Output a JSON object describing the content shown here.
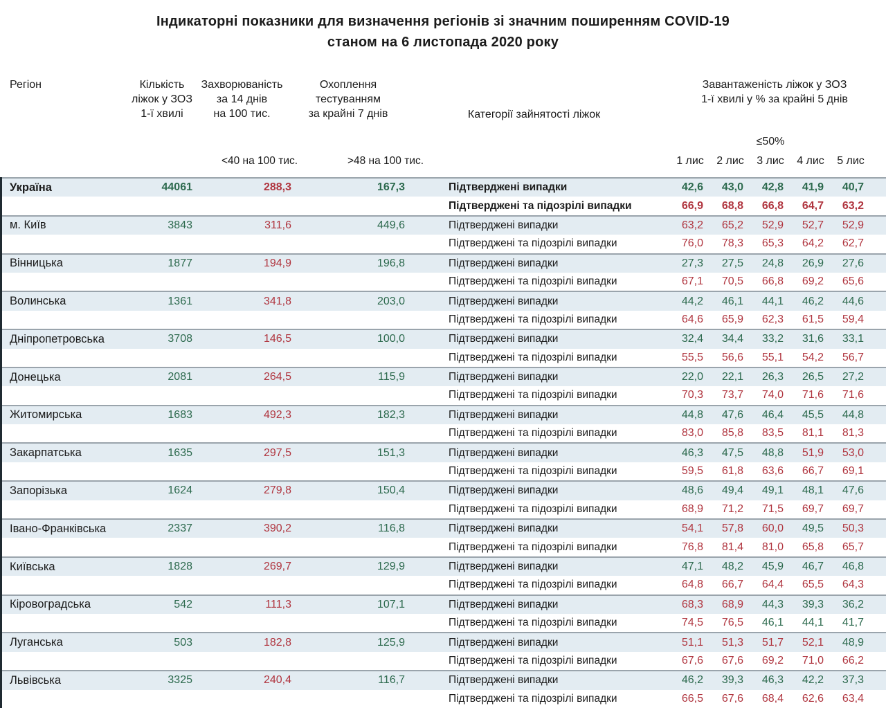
{
  "title": {
    "line1": "Індикаторні показники для визначення регіонів зі значним поширенням COVID-19",
    "line2": "станом на 6 листопада 2020 року"
  },
  "header": {
    "region": "Регіон",
    "beds": [
      "Кількість",
      "ліжок у ЗОЗ",
      "1-ї хвилі"
    ],
    "incidence": [
      "Захворюваність",
      "за 14 днів",
      "на 100 тис."
    ],
    "testing": [
      "Охоплення",
      "тестуванням",
      "за крайні 7 днів"
    ],
    "category": "Категорії зайнятості ліжок",
    "occupancy": [
      "Завантаженість ліжок у ЗОЗ",
      "1-ї хвилі у % за крайні 5 днів"
    ],
    "incidence_threshold": "<40 на 100 тис.",
    "testing_threshold": ">48 на 100 тис.",
    "occupancy_threshold": "≤50%",
    "dates": [
      "1 лис",
      "2 лис",
      "3 лис",
      "4 лис",
      "5 лис"
    ]
  },
  "row_labels": {
    "confirmed": "Підтверджені випадки",
    "confirmed_suspected": "Підтверджені та підозрілі випадки"
  },
  "colors": {
    "green": "#2d6a4e",
    "red": "#b0353f",
    "row_alt_bg": "#e3ecf2",
    "separator": "#9aa4ac",
    "left_bar": "#1f2a31"
  },
  "chart_data": {
    "type": "table",
    "title": "Індикаторні показники для визначення регіонів зі значним поширенням COVID-19 станом на 6 листопада 2020 року",
    "occupancy_color_rule": "occupancy value <= 50 shown green, > 50 shown red; beds and testing columns green, incidence column red",
    "columns": [
      "Регіон",
      "Кількість ліжок у ЗОЗ 1-ї хвилі",
      "Захворюваність за 14 днів на 100 тис.",
      "Охоплення тестуванням за крайні 7 днів",
      "Категорії зайнятості ліжок",
      "1 лис",
      "2 лис",
      "3 лис",
      "4 лис",
      "5 лис"
    ],
    "regions": [
      {
        "name": "Україна",
        "bold": true,
        "beds": "44061",
        "incidence": "288,3",
        "testing": "167,3",
        "confirmed": [
          "42,6",
          "43,0",
          "42,8",
          "41,9",
          "40,7"
        ],
        "confirmed_suspected": [
          "66,9",
          "68,8",
          "66,8",
          "64,7",
          "63,2"
        ]
      },
      {
        "name": "м. Київ",
        "bold": false,
        "beds": "3843",
        "incidence": "311,6",
        "testing": "449,6",
        "confirmed": [
          "63,2",
          "65,2",
          "52,9",
          "52,7",
          "52,9"
        ],
        "confirmed_suspected": [
          "76,0",
          "78,3",
          "65,3",
          "64,2",
          "62,7"
        ]
      },
      {
        "name": "Вінницька",
        "bold": false,
        "beds": "1877",
        "incidence": "194,9",
        "testing": "196,8",
        "confirmed": [
          "27,3",
          "27,5",
          "24,8",
          "26,9",
          "27,6"
        ],
        "confirmed_suspected": [
          "67,1",
          "70,5",
          "66,8",
          "69,2",
          "65,6"
        ]
      },
      {
        "name": "Волинська",
        "bold": false,
        "beds": "1361",
        "incidence": "341,8",
        "testing": "203,0",
        "confirmed": [
          "44,2",
          "46,1",
          "44,1",
          "46,2",
          "44,6"
        ],
        "confirmed_suspected": [
          "64,6",
          "65,9",
          "62,3",
          "61,5",
          "59,4"
        ]
      },
      {
        "name": "Дніпропетровська",
        "bold": false,
        "beds": "3708",
        "incidence": "146,5",
        "testing": "100,0",
        "confirmed": [
          "32,4",
          "34,4",
          "33,2",
          "31,6",
          "33,1"
        ],
        "confirmed_suspected": [
          "55,5",
          "56,6",
          "55,1",
          "54,2",
          "56,7"
        ]
      },
      {
        "name": "Донецька",
        "bold": false,
        "beds": "2081",
        "incidence": "264,5",
        "testing": "115,9",
        "confirmed": [
          "22,0",
          "22,1",
          "26,3",
          "26,5",
          "27,2"
        ],
        "confirmed_suspected": [
          "70,3",
          "73,7",
          "74,0",
          "71,6",
          "71,6"
        ]
      },
      {
        "name": "Житомирська",
        "bold": false,
        "beds": "1683",
        "incidence": "492,3",
        "testing": "182,3",
        "confirmed": [
          "44,8",
          "47,6",
          "46,4",
          "45,5",
          "44,8"
        ],
        "confirmed_suspected": [
          "83,0",
          "85,8",
          "83,5",
          "81,1",
          "81,3"
        ]
      },
      {
        "name": "Закарпатська",
        "bold": false,
        "beds": "1635",
        "incidence": "297,5",
        "testing": "151,3",
        "confirmed": [
          "46,3",
          "47,5",
          "48,8",
          "51,9",
          "53,0"
        ],
        "confirmed_suspected": [
          "59,5",
          "61,8",
          "63,6",
          "66,7",
          "69,1"
        ]
      },
      {
        "name": "Запорізька",
        "bold": false,
        "beds": "1624",
        "incidence": "279,8",
        "testing": "150,4",
        "confirmed": [
          "48,6",
          "49,4",
          "49,1",
          "48,1",
          "47,6"
        ],
        "confirmed_suspected": [
          "68,9",
          "71,2",
          "71,5",
          "69,7",
          "69,7"
        ]
      },
      {
        "name": "Івано-Франківська",
        "bold": false,
        "beds": "2337",
        "incidence": "390,2",
        "testing": "116,8",
        "confirmed": [
          "54,1",
          "57,8",
          "60,0",
          "49,5",
          "50,3"
        ],
        "confirmed_suspected": [
          "76,8",
          "81,4",
          "81,0",
          "65,8",
          "65,7"
        ]
      },
      {
        "name": "Київська",
        "bold": false,
        "beds": "1828",
        "incidence": "269,7",
        "testing": "129,9",
        "confirmed": [
          "47,1",
          "48,2",
          "45,9",
          "46,7",
          "46,8"
        ],
        "confirmed_suspected": [
          "64,8",
          "66,7",
          "64,4",
          "65,5",
          "64,3"
        ]
      },
      {
        "name": "Кіровоградська",
        "bold": false,
        "beds": "542",
        "incidence": "111,3",
        "testing": "107,1",
        "confirmed": [
          "68,3",
          "68,9",
          "44,3",
          "39,3",
          "36,2"
        ],
        "confirmed_suspected": [
          "74,5",
          "76,5",
          "46,1",
          "44,1",
          "41,7"
        ]
      },
      {
        "name": "Луганська",
        "bold": false,
        "beds": "503",
        "incidence": "182,8",
        "testing": "125,9",
        "confirmed": [
          "51,1",
          "51,3",
          "51,7",
          "52,1",
          "48,9"
        ],
        "confirmed_suspected": [
          "67,6",
          "67,6",
          "69,2",
          "71,0",
          "66,2"
        ]
      },
      {
        "name": "Львівська",
        "bold": false,
        "beds": "3325",
        "incidence": "240,4",
        "testing": "116,7",
        "confirmed": [
          "46,2",
          "39,3",
          "46,3",
          "42,2",
          "37,3"
        ],
        "confirmed_suspected": [
          "66,5",
          "67,6",
          "68,4",
          "62,6",
          "63,4"
        ]
      }
    ]
  }
}
